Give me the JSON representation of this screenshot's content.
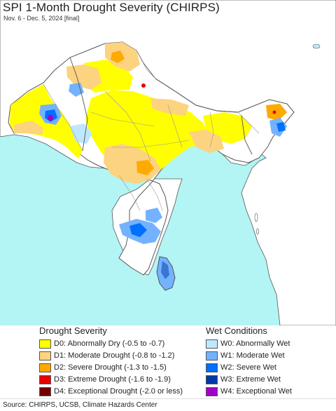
{
  "header": {
    "title": "SPI 1-Month Drought Severity (CHIRPS)",
    "subtitle": "Nov. 6 - Dec. 5, 2024 [final]"
  },
  "colors": {
    "ocean": "#b3f4f4",
    "land_base": "#ffffff",
    "outside_land": "#ffffff",
    "border": "#555555",
    "state_border": "#999999"
  },
  "legend": {
    "drought": {
      "heading": "Drought Severity",
      "items": [
        {
          "label": "D0: Abnormally Dry (-0.5 to -0.7)",
          "color": "#ffff00"
        },
        {
          "label": "D1: Moderate Drought (-0.8 to -1.2)",
          "color": "#fcd37f"
        },
        {
          "label": "D2: Severe Drought (-1.3 to -1.5)",
          "color": "#ffaa00"
        },
        {
          "label": "D3: Extreme Drought (-1.6 to -1.9)",
          "color": "#e60000"
        },
        {
          "label": "D4: Exceptional Drought (-2.0 or less)",
          "color": "#730000"
        }
      ]
    },
    "wet": {
      "heading": "Wet Conditions",
      "items": [
        {
          "label": "W0: Abnormally Wet",
          "color": "#bee8ff"
        },
        {
          "label": "W1: Moderate Wet",
          "color": "#73b2ff"
        },
        {
          "label": "W2: Severe Wet",
          "color": "#0070ff"
        },
        {
          "label": "W3: Extreme Wet",
          "color": "#0038a8"
        },
        {
          "label": "W4: Exceptional Wet",
          "color": "#a000c8"
        }
      ]
    }
  },
  "footer": {
    "source": "Source: CHIRPS, UCSB, Climate Hazards Center"
  }
}
